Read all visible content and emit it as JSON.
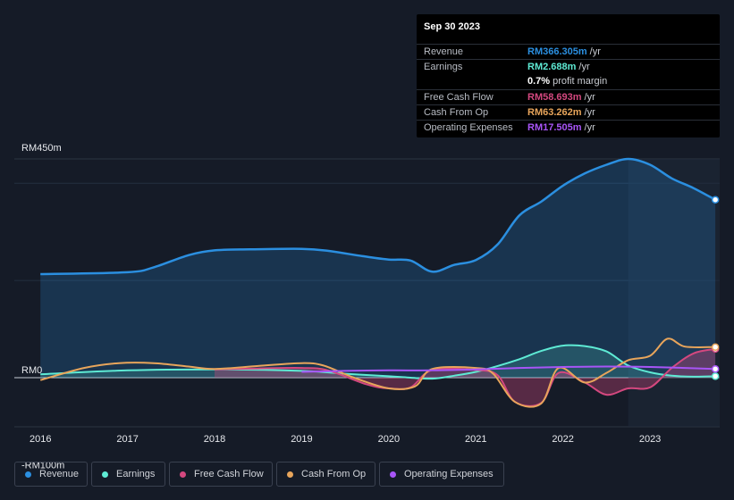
{
  "chart_data": {
    "type": "area",
    "y_axis": {
      "ylim": [
        -100,
        450
      ],
      "tick_labels": [
        {
          "value": 450,
          "label": "RM450m"
        },
        {
          "value": 0,
          "label": "RM0"
        },
        {
          "value": -100,
          "label": "-RM100m"
        }
      ]
    },
    "x_axis": {
      "range": [
        2015.7,
        2023.8
      ],
      "tick_labels": [
        {
          "value": 2016,
          "label": "2016"
        },
        {
          "value": 2017,
          "label": "2017"
        },
        {
          "value": 2018,
          "label": "2018"
        },
        {
          "value": 2019,
          "label": "2019"
        },
        {
          "value": 2020,
          "label": "2020"
        },
        {
          "value": 2021,
          "label": "2021"
        },
        {
          "value": 2022,
          "label": "2022"
        },
        {
          "value": 2023,
          "label": "2023"
        }
      ]
    },
    "highlight_from": 2022.75,
    "series": [
      {
        "name": "Revenue",
        "color": "#2b8fe0",
        "fill": true,
        "points": [
          [
            2016,
            213
          ],
          [
            2017,
            217
          ],
          [
            2017.3,
            227
          ],
          [
            2017.7,
            252
          ],
          [
            2018,
            262
          ],
          [
            2018.4,
            264
          ],
          [
            2019,
            265
          ],
          [
            2019.3,
            261
          ],
          [
            2019.7,
            250
          ],
          [
            2020,
            243
          ],
          [
            2020.25,
            241
          ],
          [
            2020.5,
            218
          ],
          [
            2020.75,
            232
          ],
          [
            2021,
            242
          ],
          [
            2021.25,
            274
          ],
          [
            2021.5,
            334
          ],
          [
            2021.75,
            362
          ],
          [
            2022,
            395
          ],
          [
            2022.25,
            420
          ],
          [
            2022.5,
            438
          ],
          [
            2022.75,
            450
          ],
          [
            2023,
            438
          ],
          [
            2023.25,
            410
          ],
          [
            2023.5,
            390
          ],
          [
            2023.75,
            366
          ]
        ]
      },
      {
        "name": "Earnings",
        "color": "#5eead4",
        "fill": true,
        "points": [
          [
            2016,
            7
          ],
          [
            2017,
            15
          ],
          [
            2018,
            17
          ],
          [
            2019,
            14
          ],
          [
            2019.5,
            8
          ],
          [
            2020,
            3
          ],
          [
            2020.25,
            0
          ],
          [
            2020.5,
            -2
          ],
          [
            2020.75,
            4
          ],
          [
            2021,
            12
          ],
          [
            2021.25,
            24
          ],
          [
            2021.5,
            38
          ],
          [
            2021.75,
            55
          ],
          [
            2022,
            66
          ],
          [
            2022.25,
            65
          ],
          [
            2022.5,
            54
          ],
          [
            2022.75,
            25
          ],
          [
            2023,
            11
          ],
          [
            2023.25,
            4
          ],
          [
            2023.5,
            2
          ],
          [
            2023.75,
            3
          ]
        ]
      },
      {
        "name": "Free Cash Flow",
        "color": "#d4487f",
        "fill": true,
        "points": [
          [
            2018,
            17
          ],
          [
            2018.5,
            19
          ],
          [
            2019,
            20
          ],
          [
            2019.3,
            15
          ],
          [
            2019.75,
            -14
          ],
          [
            2020,
            -22
          ],
          [
            2020.25,
            -20
          ],
          [
            2020.5,
            16
          ],
          [
            2021,
            16
          ],
          [
            2021.25,
            5
          ],
          [
            2021.45,
            -50
          ],
          [
            2021.75,
            -52
          ],
          [
            2021.95,
            10
          ],
          [
            2022.25,
            -10
          ],
          [
            2022.5,
            -35
          ],
          [
            2022.75,
            -22
          ],
          [
            2023,
            -20
          ],
          [
            2023.25,
            20
          ],
          [
            2023.5,
            50
          ],
          [
            2023.75,
            59
          ]
        ]
      },
      {
        "name": "Cash From Op",
        "color": "#e8a55b",
        "fill": false,
        "points": [
          [
            2016,
            -5
          ],
          [
            2016.5,
            20
          ],
          [
            2016.9,
            30
          ],
          [
            2017.3,
            30
          ],
          [
            2017.7,
            23
          ],
          [
            2018,
            18
          ],
          [
            2018.5,
            24
          ],
          [
            2019,
            30
          ],
          [
            2019.25,
            25
          ],
          [
            2019.6,
            0
          ],
          [
            2020,
            -22
          ],
          [
            2020.3,
            -18
          ],
          [
            2020.5,
            18
          ],
          [
            2021,
            20
          ],
          [
            2021.2,
            8
          ],
          [
            2021.45,
            -50
          ],
          [
            2021.75,
            -53
          ],
          [
            2021.95,
            20
          ],
          [
            2022.25,
            -10
          ],
          [
            2022.5,
            10
          ],
          [
            2022.75,
            36
          ],
          [
            2023,
            45
          ],
          [
            2023.2,
            80
          ],
          [
            2023.4,
            64
          ],
          [
            2023.75,
            63
          ]
        ]
      },
      {
        "name": "Operating Expenses",
        "color": "#a855f7",
        "fill": false,
        "points": [
          [
            2019,
            12
          ],
          [
            2019.5,
            14
          ],
          [
            2020,
            15
          ],
          [
            2020.5,
            15
          ],
          [
            2021,
            17
          ],
          [
            2021.5,
            20
          ],
          [
            2022,
            22
          ],
          [
            2022.5,
            23
          ],
          [
            2023,
            22
          ],
          [
            2023.75,
            18
          ]
        ]
      }
    ]
  },
  "tooltip": {
    "date": "Sep 30 2023",
    "rows": [
      {
        "label": "Revenue",
        "value": "RM366.305m",
        "suffix": "/yr",
        "color": "#2b8fe0"
      },
      {
        "label": "Earnings",
        "value": "RM2.688m",
        "suffix": "/yr",
        "color": "#5eead4"
      },
      {
        "label": "",
        "value": "0.7%",
        "suffix": "profit margin",
        "color": "#ffffff"
      },
      {
        "label": "Free Cash Flow",
        "value": "RM58.693m",
        "suffix": "/yr",
        "color": "#d4487f"
      },
      {
        "label": "Cash From Op",
        "value": "RM63.262m",
        "suffix": "/yr",
        "color": "#e8a55b"
      },
      {
        "label": "Operating Expenses",
        "value": "RM17.505m",
        "suffix": "/yr",
        "color": "#a855f7"
      }
    ]
  },
  "legend": [
    {
      "label": "Revenue",
      "color": "#2b8fe0"
    },
    {
      "label": "Earnings",
      "color": "#5eead4"
    },
    {
      "label": "Free Cash Flow",
      "color": "#d4487f"
    },
    {
      "label": "Cash From Op",
      "color": "#e8a55b"
    },
    {
      "label": "Operating Expenses",
      "color": "#a855f7"
    }
  ]
}
